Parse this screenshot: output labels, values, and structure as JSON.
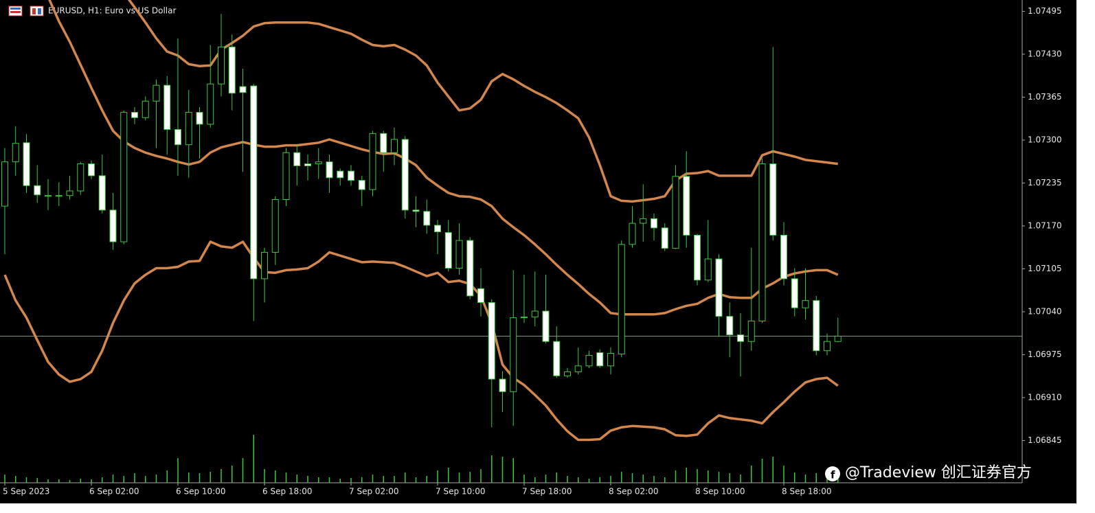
{
  "chart_data": {
    "type": "candlestick",
    "title": "EURUSD, H1:  Euro vs US Dollar",
    "watermark": "@Tradeview 创汇证券官方",
    "categories": [
      "5 Sep 2023",
      null,
      null,
      null,
      null,
      null,
      null,
      null,
      "6 Sep 02:00",
      null,
      null,
      null,
      null,
      null,
      null,
      null,
      "6 Sep 10:00",
      null,
      null,
      null,
      null,
      null,
      null,
      null,
      "6 Sep 18:00",
      null,
      null,
      null,
      null,
      null,
      null,
      null,
      "7 Sep 02:00",
      null,
      null,
      null,
      null,
      null,
      null,
      null,
      "7 Sep 10:00",
      null,
      null,
      null,
      null,
      null,
      null,
      null,
      "7 Sep 18:00",
      null,
      null,
      null,
      null,
      null,
      null,
      null,
      "8 Sep 02:00",
      null,
      null,
      null,
      null,
      null,
      null,
      null,
      "8 Sep 10:00",
      null,
      null,
      null,
      null,
      null,
      null,
      null,
      "8 Sep 18:00",
      null,
      null,
      null,
      null,
      null
    ],
    "open": [
      1.072,
      1.07267,
      1.07296,
      1.07231,
      1.07216,
      1.07215,
      1.07216,
      1.07223,
      1.07264,
      1.07246,
      1.07194,
      1.07146,
      1.07342,
      1.07334,
      1.07359,
      1.07383,
      1.07316,
      1.07293,
      1.07342,
      1.07324,
      1.07385,
      1.07441,
      1.07381,
      1.07382,
      1.0709,
      1.0713,
      1.0721,
      1.07281,
      1.07264,
      1.07264,
      1.07267,
      1.07253,
      1.07253,
      1.07239,
      1.07225,
      1.0731,
      1.07281,
      1.07301,
      1.07194,
      1.07192,
      1.07171,
      1.0716,
      1.07106,
      1.07148,
      1.07075,
      1.07054,
      1.06938,
      1.06919,
      1.07032,
      1.07032,
      1.07041,
      1.06995,
      1.06943,
      1.06949,
      1.06958,
      1.06978,
      1.06958,
      1.06976,
      1.07142,
      1.07174,
      1.07181,
      1.07167,
      1.07136,
      1.07245,
      1.07156,
      1.07088,
      1.0712,
      1.07033,
      1.07005,
      1.06995,
      1.07026,
      1.07264,
      1.07156,
      1.0709,
      1.07046,
      1.07057,
      1.06981,
      1.06995
    ],
    "high": [
      1.07288,
      1.07321,
      1.07309,
      1.07262,
      1.07241,
      1.07236,
      1.07246,
      1.07267,
      1.07269,
      1.07278,
      1.0722,
      1.07345,
      1.0735,
      1.07366,
      1.07392,
      1.07397,
      1.07454,
      1.07376,
      1.0735,
      1.07444,
      1.07491,
      1.0746,
      1.07408,
      1.07385,
      1.07137,
      1.07215,
      1.07288,
      1.07293,
      1.07278,
      1.07288,
      1.07278,
      1.07257,
      1.07262,
      1.07246,
      1.07314,
      1.07314,
      1.07319,
      1.07306,
      1.07215,
      1.0721,
      1.07179,
      1.07179,
      1.07174,
      1.07153,
      1.07106,
      1.07059,
      1.0695,
      1.07103,
      1.07096,
      1.07101,
      1.07096,
      1.07018,
      1.06955,
      1.06986,
      1.06981,
      1.06983,
      1.06986,
      1.07148,
      1.072,
      1.07233,
      1.07189,
      1.07174,
      1.07262,
      1.07283,
      1.07158,
      1.07179,
      1.07127,
      1.07054,
      1.07038,
      1.07137,
      1.07272,
      1.07441,
      1.07176,
      1.07106,
      1.07106,
      1.07064,
      1.07007,
      1.07031
    ],
    "low": [
      1.07127,
      1.07246,
      1.0722,
      1.07205,
      1.07194,
      1.072,
      1.0721,
      1.07217,
      1.07241,
      1.07189,
      1.07134,
      1.07142,
      1.07324,
      1.0733,
      1.07288,
      1.07278,
      1.07246,
      1.07243,
      1.07272,
      1.07319,
      1.07366,
      1.07345,
      1.07252,
      1.07026,
      1.07054,
      1.07111,
      1.072,
      1.07231,
      1.07239,
      1.07241,
      1.0722,
      1.07231,
      1.07231,
      1.072,
      1.07215,
      1.07252,
      1.07262,
      1.07181,
      1.07168,
      1.07158,
      1.07127,
      1.07101,
      1.07096,
      1.07059,
      1.07033,
      1.06865,
      1.06888,
      1.06867,
      1.07023,
      1.07018,
      1.06992,
      1.0694,
      1.0694,
      1.06945,
      1.06955,
      1.06955,
      1.06945,
      1.06971,
      1.07137,
      1.07146,
      1.07148,
      1.07132,
      1.07135,
      1.07137,
      1.0708,
      1.07085,
      1.07002,
      1.06971,
      1.06942,
      1.06981,
      1.07023,
      1.07148,
      1.0708,
      1.07033,
      1.07028,
      1.06974,
      1.06974,
      1.06994
    ],
    "close": [
      1.07267,
      1.07295,
      1.07231,
      1.07217,
      1.07215,
      1.07216,
      1.07223,
      1.07264,
      1.07246,
      1.07194,
      1.07146,
      1.07342,
      1.07334,
      1.07359,
      1.07383,
      1.07316,
      1.07293,
      1.07342,
      1.07324,
      1.07385,
      1.07441,
      1.07371,
      1.07372,
      1.0709,
      1.0713,
      1.0721,
      1.07281,
      1.07261,
      1.07261,
      1.07267,
      1.07243,
      1.07243,
      1.07239,
      1.07225,
      1.0731,
      1.07281,
      1.07301,
      1.07194,
      1.07192,
      1.07171,
      1.07161,
      1.07106,
      1.07148,
      1.07064,
      1.07054,
      1.06938,
      1.06919,
      1.07031,
      1.07031,
      1.07041,
      1.06995,
      1.06943,
      1.06949,
      1.06958,
      1.06974,
      1.06958,
      1.06977,
      1.07142,
      1.07174,
      1.07181,
      1.07167,
      1.07136,
      1.07245,
      1.07156,
      1.07088,
      1.0712,
      1.07033,
      1.07005,
      1.06995,
      1.07026,
      1.07264,
      1.07156,
      1.0709,
      1.07046,
      1.07057,
      1.06981,
      1.06995,
      1.07003
    ],
    "upper_band": [
      null,
      null,
      null,
      null,
      null,
      null,
      null,
      null,
      null,
      null,
      null,
      1.07523,
      1.07501,
      1.07478,
      1.07454,
      1.07434,
      1.07428,
      1.07415,
      1.07412,
      1.07413,
      1.07437,
      1.07447,
      1.07458,
      1.07472,
      1.07477,
      1.07478,
      1.07478,
      1.07478,
      1.07478,
      1.07476,
      1.07471,
      1.07466,
      1.07461,
      1.07452,
      1.07444,
      1.07442,
      1.07444,
      1.07437,
      1.07428,
      1.07413,
      1.07387,
      1.07366,
      1.07345,
      1.07348,
      1.07361,
      1.07389,
      1.074,
      1.07392,
      1.07382,
      1.07373,
      1.07365,
      1.07356,
      1.07345,
      1.07333,
      1.07304,
      1.07262,
      1.07215,
      1.07208,
      1.07207,
      1.07209,
      1.07211,
      1.07215,
      1.07239,
      1.07249,
      1.0725,
      1.07253,
      1.07246,
      1.07246,
      1.07246,
      1.07246,
      1.07277,
      1.07283,
      1.07279,
      1.07275,
      1.0727,
      1.07268,
      1.07266,
      1.07264
    ],
    "middle_band": [
      null,
      null,
      null,
      null,
      1.07517,
      1.0748,
      1.07449,
      1.07414,
      1.07379,
      1.07345,
      1.07314,
      1.07298,
      1.07288,
      1.07281,
      1.07276,
      1.07272,
      1.07267,
      1.07263,
      1.07267,
      1.07281,
      1.07289,
      1.07293,
      1.07297,
      1.07293,
      1.0729,
      1.0729,
      1.07292,
      1.07292,
      1.07294,
      1.07296,
      1.07301,
      1.07296,
      1.07291,
      1.07286,
      1.07282,
      1.07279,
      1.0728,
      1.07272,
      1.07262,
      1.07243,
      1.07231,
      1.0722,
      1.07215,
      1.07214,
      1.0721,
      1.072,
      1.07181,
      1.07168,
      1.07156,
      1.07142,
      1.07127,
      1.07111,
      1.07096,
      1.07082,
      1.07067,
      1.07054,
      1.07038,
      1.07036,
      1.07036,
      1.07036,
      1.07036,
      1.07038,
      1.07044,
      1.07049,
      1.07052,
      1.07061,
      1.07067,
      1.07062,
      1.07061,
      1.07061,
      1.07075,
      1.07083,
      1.07093,
      1.07098,
      1.07101,
      1.07103,
      1.07103,
      1.07096
    ],
    "lower_band": [
      1.07096,
      1.07057,
      1.07031,
      1.06997,
      1.06964,
      1.06945,
      1.06934,
      1.06938,
      1.06949,
      1.06981,
      1.07023,
      1.07057,
      1.07083,
      1.07096,
      1.07106,
      1.07106,
      1.07108,
      1.07116,
      1.07117,
      1.07146,
      1.07139,
      1.07137,
      1.07146,
      1.07122,
      1.071,
      1.07099,
      1.07103,
      1.07104,
      1.07106,
      1.07116,
      1.0713,
      1.07125,
      1.0712,
      1.07115,
      1.07116,
      1.07115,
      1.07114,
      1.07108,
      1.07101,
      1.07094,
      1.07099,
      1.07085,
      1.07087,
      1.07082,
      1.07064,
      1.07023,
      1.0696,
      1.0694,
      1.06929,
      1.06914,
      1.06898,
      1.06877,
      1.06859,
      1.06846,
      1.06846,
      1.06847,
      1.0686,
      1.06865,
      1.06867,
      1.06866,
      1.06865,
      1.06862,
      1.06853,
      1.06852,
      1.06854,
      1.06871,
      1.06883,
      1.06879,
      1.06877,
      1.06875,
      1.06871,
      1.06888,
      1.06903,
      1.06919,
      1.06933,
      1.06938,
      1.0694,
      1.06928
    ],
    "band_color": "#d3874c",
    "volume": [
      12,
      10,
      8,
      7,
      5,
      5,
      4,
      6,
      5,
      8,
      12,
      10,
      14,
      10,
      12,
      18,
      36,
      15,
      14,
      16,
      20,
      25,
      36,
      70,
      20,
      18,
      15,
      12,
      10,
      8,
      8,
      6,
      7,
      8,
      12,
      10,
      10,
      15,
      8,
      10,
      18,
      22,
      15,
      16,
      20,
      40,
      38,
      36,
      12,
      8,
      12,
      15,
      10,
      8,
      6,
      8,
      10,
      16,
      14,
      12,
      10,
      8,
      18,
      22,
      20,
      18,
      16,
      14,
      12,
      25,
      35,
      38,
      25,
      15,
      12,
      14,
      10,
      6
    ],
    "price_line": 1.07003,
    "bull_color": "#000000",
    "bear_color": "#ffffff",
    "wick_color": "#3fc83f",
    "ylim": [
      1.06781,
      1.07509
    ],
    "yticks": [
      1.07495,
      {
        "value": 1.0743,
        "label": "1.07430"
      },
      1.07365,
      {
        "value": 1.073,
        "label": "1.07300"
      },
      1.07235,
      {
        "value": 1.0717,
        "label": "1.07170"
      },
      1.07105,
      {
        "value": 1.0704,
        "label": "1.07040"
      },
      1.06975,
      {
        "value": 1.0691,
        "label": "1.06910"
      },
      1.06845
    ]
  }
}
